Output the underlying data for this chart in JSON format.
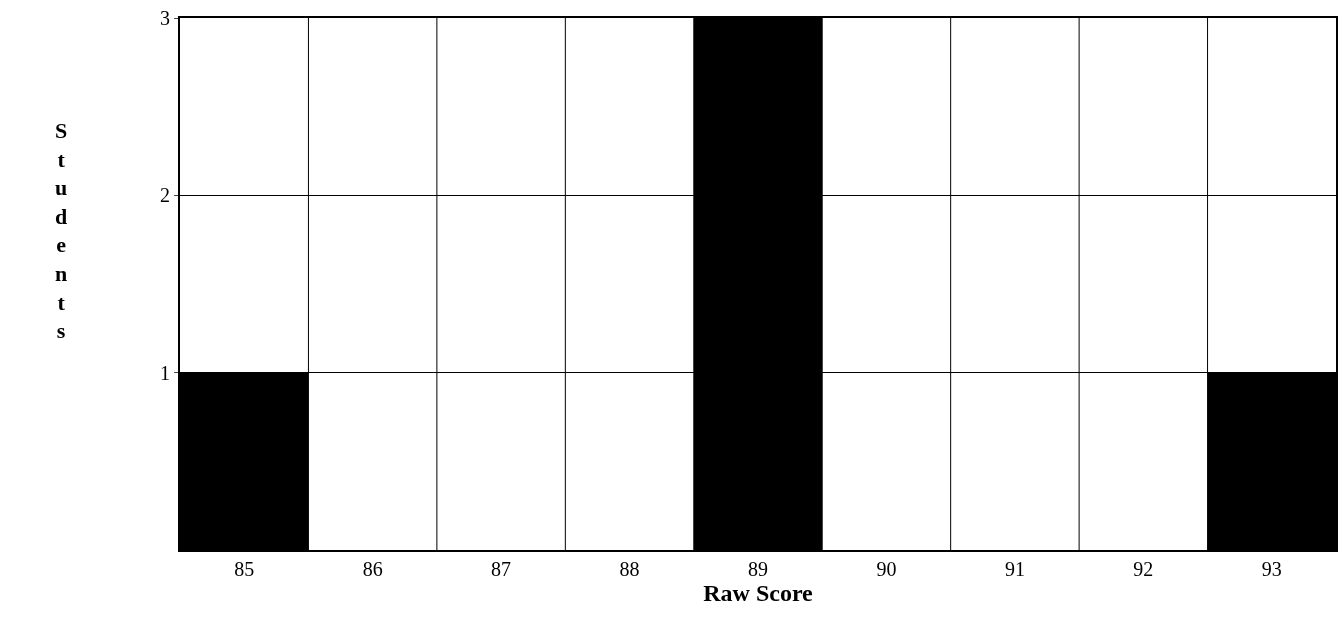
{
  "chart_data": {
    "type": "bar",
    "categories": [
      "85",
      "86",
      "87",
      "88",
      "89",
      "90",
      "91",
      "92",
      "93"
    ],
    "values": [
      1,
      0,
      0,
      0,
      3,
      0,
      0,
      0,
      1
    ],
    "color": "#000000",
    "xlabel": "Raw Score",
    "ylabel": "Students",
    "ylim": [
      0,
      3
    ],
    "yticks": [
      1,
      2,
      3
    ],
    "grid": true,
    "legend": false
  }
}
